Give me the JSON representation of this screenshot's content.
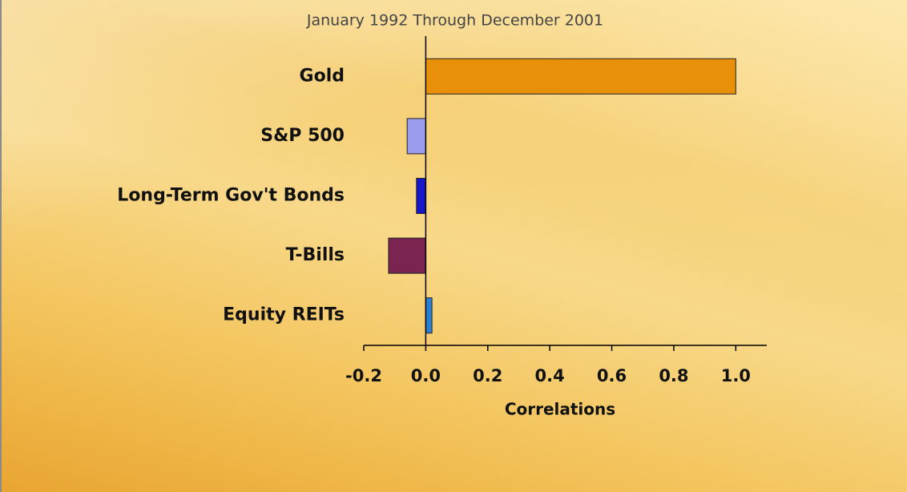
{
  "chart_data": {
    "type": "hbar",
    "title": "January 1992 Through December 2001",
    "categories": [
      "Gold",
      "S&P 500",
      "Long-Term Gov't Bonds",
      "T-Bills",
      "Equity REITs"
    ],
    "values": [
      1.0,
      -0.06,
      -0.03,
      -0.12,
      0.02
    ],
    "colors": [
      "#e8900a",
      "#9c9cee",
      "#1818c8",
      "#7a2452",
      "#2a80d2"
    ],
    "xlabel": "Correlations",
    "xlim": [
      -0.2,
      1.1
    ],
    "xticks": [
      -0.2,
      {
        "value": 0,
        "label": "0.0"
      },
      0.2,
      0.4,
      0.6,
      0.8,
      {
        "value": 1,
        "label": "1.0"
      }
    ]
  }
}
